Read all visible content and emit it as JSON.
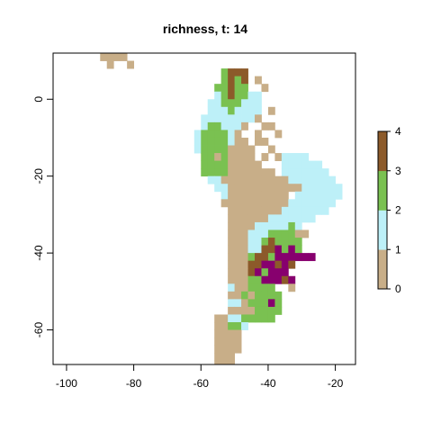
{
  "chart_data": {
    "type": "heatmap",
    "title": "richness, t: 14",
    "xlabel": "",
    "ylabel": "",
    "xlim": [
      -104,
      -14
    ],
    "ylim": [
      -69,
      12
    ],
    "x_ticks": [
      -100,
      -80,
      -60,
      -40,
      -20
    ],
    "y_ticks": [
      0,
      -20,
      -40,
      -60
    ],
    "x_tick_labels": [
      "-100",
      "-80",
      "-60",
      "-40",
      "-20"
    ],
    "y_tick_labels": [
      "0",
      "-20",
      "-40",
      "-60"
    ],
    "cell_size_deg": 2,
    "value_range": [
      0,
      4
    ],
    "color_scale": [
      {
        "range": [
          0,
          1
        ],
        "color": "#C8AE88"
      },
      {
        "range": [
          1,
          2
        ],
        "color": "#BDF0F8"
      },
      {
        "range": [
          2,
          3
        ],
        "color": "#7AC151"
      },
      {
        "range": [
          3,
          4
        ],
        "color": "#8C5A2A"
      },
      {
        "range": [
          4,
          4.3
        ],
        "color": "#87006E"
      }
    ],
    "legend": {
      "position": "right",
      "ticks": [
        0,
        1,
        2,
        3,
        4
      ],
      "tick_labels": [
        "0",
        "1",
        "2",
        "3",
        "4"
      ]
    },
    "grid": false,
    "cell_lat_top": 12,
    "cell_lon_left": -90,
    "rows": [
      "0000",
      ".0..0",
      "..................2333",
      "..................2323.0",
      ".................22322..0",
      ".................1232211",
      "................11222111",
      "................11121111.0",
      "...............111111110",
      "...............1221110..00",
      "..............1222210..0..0",
      "..............12222100.00",
      "..............122220000..0",
      "...............22020000.0.01111",
      "...............222200000...111111",
      "...............22220000000.1111111",
      "................1100000000001111111",
      ".................1100000000000111111",
      "..................1000000000.1111111",
      "..................00000000001111111",
      "...................000000001111111",
      "...................0000001111111",
      "...................00001111121",
      "...................000111222200",
      "...................00011232222",
      "...................00011334242",
      "...................0002332444444",
      "...................0003344343",
      "...................000342444",
      "...................0002244434",
      "...................1002222..0",
      "...................00202222",
      "...................11022242",
      "...................00002222",
      ".................001122222",
      ".................00221",
      ".................0000",
      ".................0000",
      ".................0000",
      ".................000",
      ".................000",
      ".................00",
      "................0000",
      "................000",
      "................00",
      "..............000",
      "..............000",
      "..............00",
      "..............00",
      "..............00",
      "..................0"
    ]
  }
}
